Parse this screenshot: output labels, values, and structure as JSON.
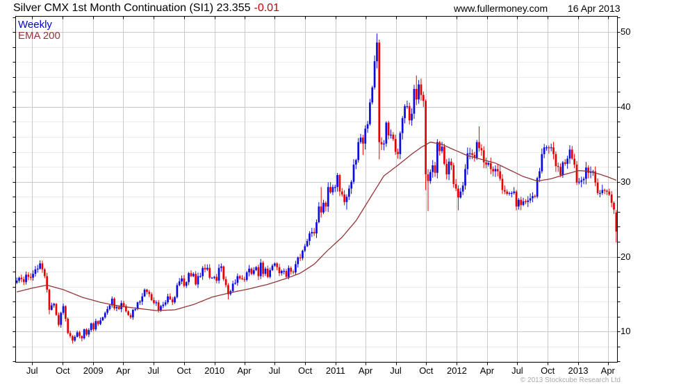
{
  "header": {
    "title": "Silver CMX 1st Month Continuation (SI1) 23.355",
    "change": "-0.01",
    "website": "www.fullermoney.com",
    "date": "16 Apr 2013"
  },
  "legend": {
    "weekly": "Weekly",
    "ema": "EMA 200"
  },
  "footer": {
    "copyright": "© 2013 Stockcube Research Ltd"
  },
  "colors": {
    "up": "#0b0bdc",
    "down": "#e60000",
    "ema": "#943434",
    "grid_major": "#c9c9c9",
    "grid_minor": "#ededed",
    "border": "#000000",
    "title_change": "#cc0000",
    "legend_weekly": "#0000cc",
    "copyright": "#a8a8a8"
  },
  "chart_data": {
    "type": "candlestick-weekly",
    "title": "Silver CMX 1st Month Continuation (SI1)",
    "last_price": 23.355,
    "change": -0.01,
    "legend": [
      "Weekly",
      "EMA 200"
    ],
    "grid": true,
    "y_axis": {
      "side": "right",
      "ylim": [
        5.9,
        52.1
      ],
      "major_ticks": [
        10,
        20,
        30,
        40,
        50
      ],
      "minor_step": 2,
      "minor_range": [
        6,
        52
      ]
    },
    "x_axis": {
      "start_date": "2008-05-12",
      "labels": [
        {
          "text": "Jul",
          "week": 7.1
        },
        {
          "text": "Oct",
          "week": 20.3
        },
        {
          "text": "2009",
          "week": 33.4
        },
        {
          "text": "Apr",
          "week": 46.3
        },
        {
          "text": "Jul",
          "week": 59.3
        },
        {
          "text": "Oct",
          "week": 72.4
        },
        {
          "text": "2010",
          "week": 85.6
        },
        {
          "text": "Apr",
          "week": 98.4
        },
        {
          "text": "Jul",
          "week": 111.4
        },
        {
          "text": "Oct",
          "week": 124.6
        },
        {
          "text": "2011",
          "week": 137.7
        },
        {
          "text": "Apr",
          "week": 150.6
        },
        {
          "text": "Jul",
          "week": 163.6
        },
        {
          "text": "Oct",
          "week": 176.7
        },
        {
          "text": "2012",
          "week": 189.9
        },
        {
          "text": "Apr",
          "week": 202.9
        },
        {
          "text": "Jul",
          "week": 215.9
        },
        {
          "text": "Oct",
          "week": 229.0
        },
        {
          "text": "2013",
          "week": 242.1
        },
        {
          "text": "Apr",
          "week": 254.9
        }
      ]
    },
    "first_open": 16.5,
    "weekly_closes": [
      16.8,
      17.2,
      17.0,
      16.6,
      17.6,
      17.3,
      17.2,
      17.7,
      18.3,
      18.4,
      19.1,
      18.3,
      17.4,
      15.6,
      12.9,
      13.5,
      13.7,
      12.2,
      10.9,
      12.5,
      13.4,
      11.7,
      9.8,
      9.4,
      8.8,
      9.3,
      9.9,
      9.4,
      9.1,
      10.3,
      9.6,
      10.2,
      11.1,
      10.3,
      11.4,
      11.0,
      11.5,
      11.9,
      12.5,
      13.0,
      13.5,
      14.4,
      13.1,
      13.3,
      13.0,
      13.8,
      13.4,
      12.7,
      12.2,
      11.9,
      12.9,
      13.0,
      13.9,
      14.0,
      14.7,
      15.6,
      15.3,
      15.0,
      14.2,
      13.8,
      13.9,
      12.8,
      13.4,
      13.6,
      13.9,
      14.7,
      14.3,
      13.9,
      14.6,
      16.2,
      16.7,
      17.1,
      16.1,
      16.6,
      17.8,
      17.4,
      17.7,
      16.3,
      17.4,
      17.4,
      18.5,
      18.3,
      18.5,
      17.2,
      17.2,
      17.3,
      16.8,
      18.5,
      18.7,
      17.0,
      16.2,
      15.0,
      15.4,
      16.4,
      16.5,
      17.4,
      17.1,
      17.0,
      16.9,
      17.9,
      18.4,
      17.7,
      18.2,
      18.6,
      17.4,
      19.2,
      17.7,
      18.4,
      17.3,
      18.2,
      18.8,
      19.1,
      18.6,
      17.8,
      18.1,
      18.1,
      17.3,
      18.5,
      18.0,
      17.9,
      19.0,
      19.9,
      19.8,
      20.8,
      21.4,
      22.1,
      23.1,
      23.3,
      23.1,
      24.6,
      26.7,
      25.9,
      27.2,
      26.7,
      29.3,
      28.6,
      29.3,
      29.3,
      30.9,
      28.7,
      28.3,
      27.3,
      28.0,
      29.1,
      30.0,
      32.3,
      32.9,
      35.3,
      35.9,
      35.1,
      37.1,
      37.7,
      40.6,
      42.6,
      46.1,
      48.6,
      35.3,
      35.0,
      35.1,
      37.9,
      36.2,
      36.3,
      35.7,
      34.0,
      33.7,
      36.5,
      38.5,
      40.1,
      40.1,
      38.2,
      39.1,
      42.4,
      41.0,
      43.0,
      41.6,
      40.8,
      31.0,
      30.1,
      31.3,
      32.2,
      31.2,
      35.3,
      34.1,
      34.7,
      32.4,
      31.0,
      32.7,
      32.2,
      29.7,
      29.1,
      27.9,
      28.7,
      29.5,
      31.7,
      33.8,
      33.8,
      33.6,
      33.2,
      35.3,
      34.5,
      34.2,
      32.6,
      32.3,
      32.5,
      31.7,
      31.4,
      31.7,
      31.4,
      30.4,
      28.9,
      28.7,
      28.4,
      28.5,
      28.5,
      28.7,
      26.7,
      27.6,
      26.9,
      27.4,
      27.3,
      27.5,
      27.8,
      28.1,
      28.0,
      30.5,
      31.4,
      33.7,
      34.6,
      34.6,
      34.5,
      34.6,
      33.7,
      32.1,
      32.0,
      30.9,
      32.6,
      32.4,
      33.1,
      34.3,
      33.1,
      32.3,
      29.9,
      30.0,
      30.2,
      30.4,
      31.9,
      31.2,
      31.4,
      31.4,
      29.9,
      28.5,
      28.5,
      28.9,
      28.8,
      28.7,
      28.3,
      27.2,
      26.3,
      23.355
    ],
    "wick_overrides": {
      "10": {
        "h": 19.5
      },
      "14": {
        "l": 12.3
      },
      "24": {
        "l": 8.4
      },
      "28": {
        "l": 8.7
      },
      "91": {
        "l": 14.3
      },
      "105": {
        "h": 19.7
      },
      "131": {
        "h": 29.3
      },
      "142": {
        "l": 26.3
      },
      "149": {
        "l": 33.6
      },
      "155": {
        "h": 49.8
      },
      "156": {
        "l": 33.0
      },
      "172": {
        "h": 44.2
      },
      "176": {
        "l": 28.9
      },
      "177": {
        "l": 26.1
      },
      "181": {
        "h": 35.7
      },
      "190": {
        "l": 26.2
      },
      "199": {
        "h": 37.4
      },
      "215": {
        "l": 26.2
      },
      "230": {
        "h": 35.1
      },
      "258": {
        "o": 25.9,
        "l": 21.9
      }
    },
    "ema_200": {
      "keyframes_week_value": [
        [
          0,
          15.3
        ],
        [
          8,
          15.9
        ],
        [
          13,
          16.2
        ],
        [
          20,
          15.6
        ],
        [
          28,
          14.6
        ],
        [
          36,
          13.9
        ],
        [
          44,
          13.4
        ],
        [
          52,
          13.1
        ],
        [
          60,
          12.8
        ],
        [
          68,
          12.9
        ],
        [
          76,
          13.6
        ],
        [
          84,
          14.6
        ],
        [
          92,
          15.2
        ],
        [
          100,
          15.7
        ],
        [
          108,
          16.3
        ],
        [
          116,
          17.1
        ],
        [
          122,
          17.8
        ],
        [
          128,
          19.0
        ],
        [
          134,
          20.9
        ],
        [
          140,
          22.6
        ],
        [
          146,
          24.8
        ],
        [
          152,
          27.8
        ],
        [
          158,
          30.8
        ],
        [
          164,
          32.2
        ],
        [
          170,
          33.7
        ],
        [
          174,
          34.6
        ],
        [
          178,
          35.3
        ],
        [
          183,
          35.0
        ],
        [
          188,
          34.3
        ],
        [
          194,
          33.5
        ],
        [
          200,
          33.0
        ],
        [
          206,
          32.5
        ],
        [
          212,
          31.6
        ],
        [
          218,
          30.7
        ],
        [
          224,
          30.1
        ],
        [
          230,
          30.4
        ],
        [
          236,
          31.0
        ],
        [
          242,
          31.5
        ],
        [
          246,
          31.4
        ],
        [
          250,
          31.1
        ],
        [
          254,
          30.7
        ],
        [
          258,
          30.2
        ]
      ]
    }
  }
}
